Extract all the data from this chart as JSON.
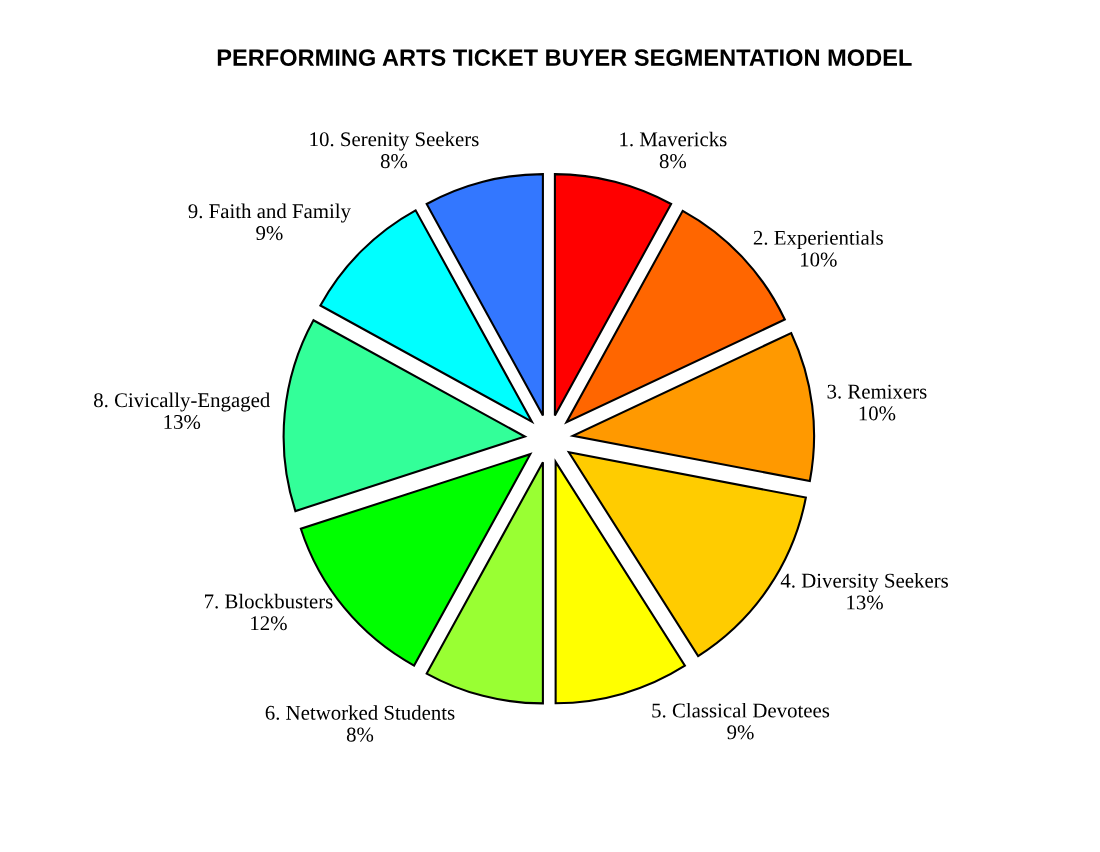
{
  "chart_data": {
    "type": "pie",
    "title": "PERFORMING ARTS TICKET BUYER SEGMENTATION MODEL",
    "categories": [
      "1. Mavericks",
      "2. Experientials",
      "3. Remixers",
      "4. Diversity Seekers",
      "5. Classical Devotees",
      "6. Networked Students",
      "7. Blockbusters",
      "8. Civically-Engaged",
      "9. Faith and Family",
      "10. Serenity Seekers"
    ],
    "values": [
      8,
      10,
      10,
      13,
      9,
      8,
      12,
      13,
      9,
      8
    ],
    "value_labels": [
      "8%",
      "10%",
      "10%",
      "13%",
      "9%",
      "8%",
      "12%",
      "13%",
      "9%",
      "8%"
    ],
    "colors": [
      "#ff0000",
      "#ff6600",
      "#ff9900",
      "#ffcc00",
      "#ffff00",
      "#99ff33",
      "#00ff00",
      "#33ff99",
      "#00ffff",
      "#3377ff"
    ],
    "legend": false
  }
}
